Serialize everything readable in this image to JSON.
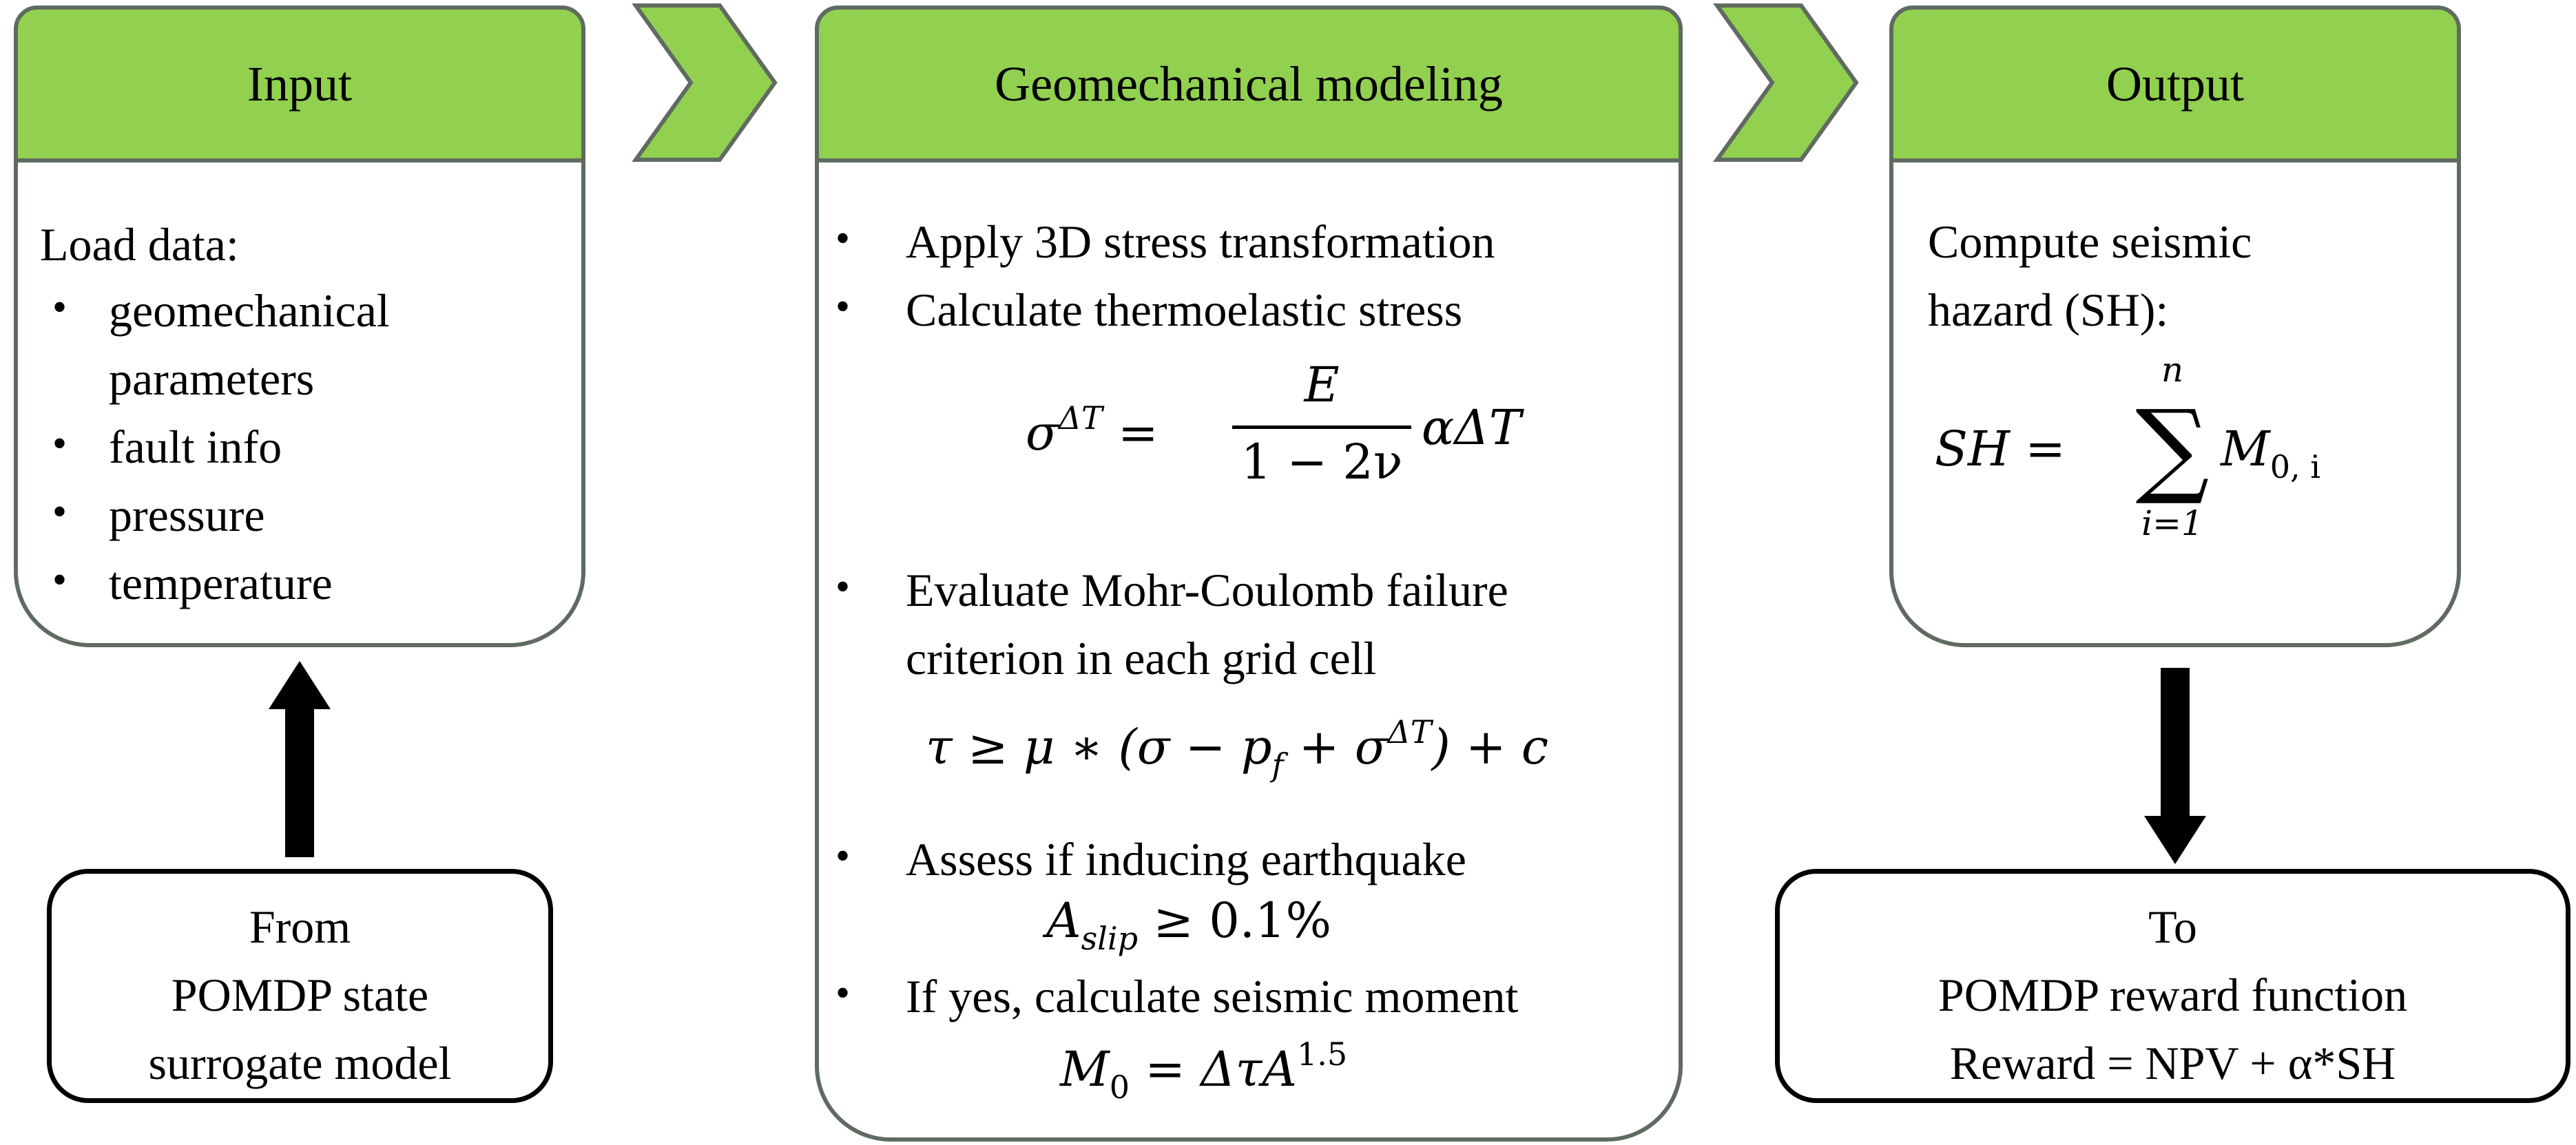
{
  "input": {
    "title": "Input",
    "intro": "Load data:",
    "items": [
      "geomechanical",
      "parameters",
      "fault info",
      "pressure",
      "temperature"
    ]
  },
  "model": {
    "title": "Geomechanical modeling",
    "step1": "Apply 3D stress transformation",
    "step2": "Calculate thermoelastic stress",
    "step3a": "Evaluate Mohr-Coulomb failure",
    "step3b": "criterion in each grid cell",
    "step4": "Assess if inducing earthquake",
    "step5": "If yes, calculate seismic moment",
    "eq_sigma_lhs": "σ",
    "eq_sigma_sup": "ΔT",
    "eq_num": "E",
    "eq_den": "1 − 2ν",
    "eq_tail": "αΔT",
    "eq_mc": "τ ≥ μ ∗ (σ − p",
    "eq_mc_sub": "f",
    "eq_mc_mid": " + σ",
    "eq_mc_sup": "ΔT",
    "eq_mc_end": ") + c",
    "eq_slip": "A",
    "eq_slip_sub": "slip",
    "eq_slip_tail": " ≥ 0.1%",
    "eq_m0": "M",
    "eq_m0_sub": "0",
    "eq_m0_mid": " = ΔτA",
    "eq_m0_sup": "1.5"
  },
  "output": {
    "title": "Output",
    "line1": "Compute seismic",
    "line2": "hazard (SH):",
    "eq_lhs": "SH =",
    "eq_sum": "∑",
    "eq_top": "n",
    "eq_bottom": "i=1",
    "eq_term": "M",
    "eq_term_sub": "0, i"
  },
  "source": {
    "line1": "From",
    "line2": "POMDP state",
    "line3": "surrogate model"
  },
  "target": {
    "line1": "To",
    "line2": "POMDP reward function",
    "line3": "Reward = NPV + α*SH"
  },
  "colors": {
    "header": "#92d050",
    "border": "#5f6b60",
    "arrow": "#000000"
  }
}
